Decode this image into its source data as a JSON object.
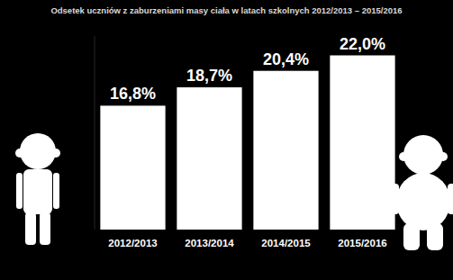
{
  "chart_data": {
    "type": "bar",
    "title": "Odsetek uczniów z zaburzeniami masy ciała w latach szkolnych 2012/2013 – 2015/2016",
    "categories": [
      "2012/2013",
      "2013/2014",
      "2014/2015",
      "2015/2016"
    ],
    "values": [
      16.8,
      18.7,
      20.4,
      22.0
    ],
    "value_labels": [
      "16,8%",
      "18,7%",
      "20,4%",
      "22,0%"
    ],
    "color": "#ffffff",
    "ylim": [
      4,
      24
    ],
    "yticks": [],
    "grid": false,
    "data_labels": true,
    "tick_labels": "x"
  }
}
